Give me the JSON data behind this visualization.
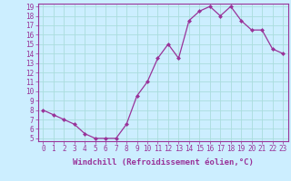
{
  "x": [
    0,
    1,
    2,
    3,
    4,
    5,
    6,
    7,
    8,
    9,
    10,
    11,
    12,
    13,
    14,
    15,
    16,
    17,
    18,
    19,
    20,
    21,
    22,
    23
  ],
  "y": [
    8.0,
    7.5,
    7.0,
    6.5,
    5.5,
    5.0,
    5.0,
    5.0,
    6.5,
    9.5,
    11.0,
    13.5,
    15.0,
    13.5,
    17.5,
    18.5,
    19.0,
    18.0,
    19.0,
    17.5,
    16.5,
    16.5,
    14.5,
    14.0
  ],
  "xlim": [
    -0.5,
    23.5
  ],
  "ylim_min": 5,
  "ylim_max": 19,
  "yticks": [
    5,
    6,
    7,
    8,
    9,
    10,
    11,
    12,
    13,
    14,
    15,
    16,
    17,
    18,
    19
  ],
  "xticks": [
    0,
    1,
    2,
    3,
    4,
    5,
    6,
    7,
    8,
    9,
    10,
    11,
    12,
    13,
    14,
    15,
    16,
    17,
    18,
    19,
    20,
    21,
    22,
    23
  ],
  "xlabel": "Windchill (Refroidissement éolien,°C)",
  "line_color": "#993399",
  "marker": "D",
  "marker_size": 2.5,
  "bg_color": "#cceeff",
  "grid_color": "#aadddd",
  "spine_color": "#993399",
  "tick_label_fontsize": 5.5,
  "xlabel_fontsize": 6.5,
  "linewidth": 0.9
}
